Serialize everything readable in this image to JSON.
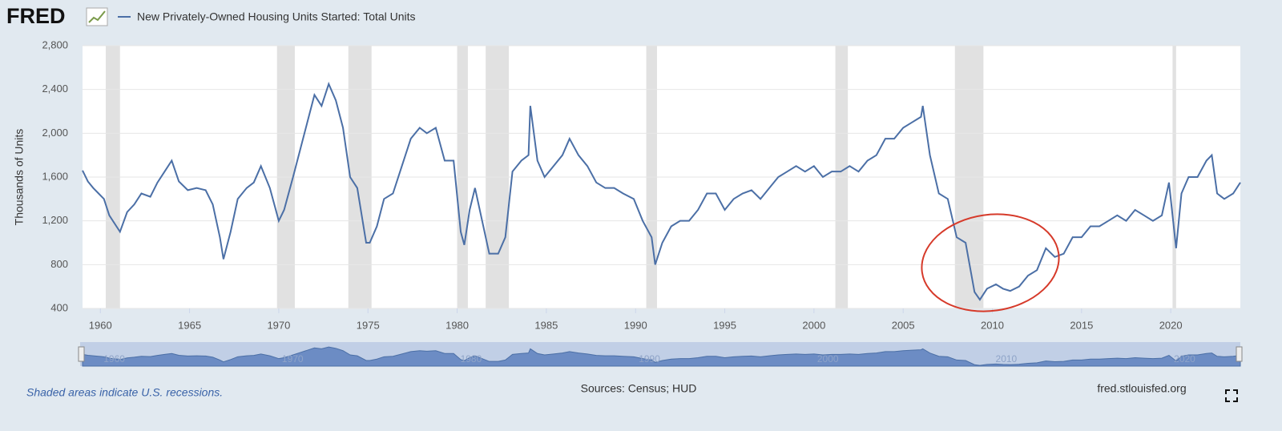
{
  "header": {
    "logo": "FRED"
  },
  "chart_data": {
    "type": "line",
    "ylabel": "Thousands of Units",
    "series": [
      {
        "name": "New Privately-Owned Housing Units Started: Total Units",
        "color": "#4b6fa6",
        "values": [
          1660,
          1560,
          1500,
          1450,
          1400,
          1250,
          1150,
          1100,
          1280,
          1350,
          1450,
          1420,
          1550,
          1650,
          1750,
          1560,
          1480,
          1500,
          1480,
          1350,
          1050,
          850,
          1100,
          1400,
          1500,
          1550,
          1700,
          1500,
          1200,
          1300,
          1600,
          1850,
          2100,
          2350,
          2250,
          2450,
          2300,
          2050,
          1600,
          1500,
          1000,
          1000,
          1150,
          1400,
          1450,
          1700,
          1950,
          2050,
          2000,
          2050,
          1750,
          1750,
          1100,
          980,
          1300,
          1500,
          1200,
          900,
          900,
          1050,
          1650,
          1750,
          1800,
          2250,
          1750,
          1600,
          1700,
          1800,
          1950,
          1800,
          1700,
          1550,
          1500,
          1500,
          1450,
          1400,
          1200,
          1050,
          800,
          1000,
          1150,
          1200,
          1200,
          1300,
          1450,
          1450,
          1300,
          1400,
          1450,
          1480,
          1400,
          1500,
          1600,
          1650,
          1700,
          1650,
          1700,
          1600,
          1650,
          1650,
          1700,
          1650,
          1750,
          1800,
          1950,
          1950,
          2050,
          2100,
          2150,
          2250,
          1800,
          1450,
          1400,
          1050,
          1000,
          550,
          480,
          580,
          620,
          580,
          560,
          600,
          700,
          750,
          950,
          870,
          900,
          1050,
          1050,
          1150,
          1150,
          1200,
          1250,
          1200,
          1300,
          1250,
          1200,
          1250,
          1550,
          950,
          1450,
          1600,
          1600,
          1750,
          1800,
          1450,
          1400,
          1450,
          1550
        ]
      }
    ],
    "x": [
      1959.0,
      1959.3,
      1959.6,
      1959.9,
      1960.2,
      1960.5,
      1960.9,
      1961.1,
      1961.5,
      1961.9,
      1962.3,
      1962.8,
      1963.2,
      1963.6,
      1964.0,
      1964.4,
      1964.9,
      1965.4,
      1965.9,
      1966.3,
      1966.7,
      1966.9,
      1967.3,
      1967.7,
      1968.2,
      1968.6,
      1969.0,
      1969.5,
      1970.0,
      1970.3,
      1970.8,
      1971.2,
      1971.6,
      1972.0,
      1972.4,
      1972.8,
      1973.2,
      1973.6,
      1974.0,
      1974.4,
      1974.9,
      1975.1,
      1975.5,
      1975.9,
      1976.4,
      1976.9,
      1977.4,
      1977.9,
      1978.3,
      1978.8,
      1979.3,
      1979.8,
      1980.2,
      1980.4,
      1980.7,
      1981.0,
      1981.4,
      1981.8,
      1982.3,
      1982.7,
      1983.1,
      1983.6,
      1984.0,
      1984.1,
      1984.5,
      1984.9,
      1985.4,
      1985.9,
      1986.3,
      1986.8,
      1987.3,
      1987.8,
      1988.3,
      1988.8,
      1989.3,
      1989.9,
      1990.4,
      1990.9,
      1991.1,
      1991.5,
      1992.0,
      1992.5,
      1993.0,
      1993.5,
      1994.0,
      1994.5,
      1995.0,
      1995.5,
      1996.0,
      1996.5,
      1997.0,
      1997.5,
      1998.0,
      1998.5,
      1999.0,
      1999.5,
      2000.0,
      2000.5,
      2001.0,
      2001.5,
      2002.0,
      2002.5,
      2003.0,
      2003.5,
      2004.0,
      2004.5,
      2005.0,
      2005.5,
      2006.0,
      2006.1,
      2006.5,
      2007.0,
      2007.5,
      2008.0,
      2008.5,
      2009.0,
      2009.3,
      2009.7,
      2010.2,
      2010.6,
      2011.0,
      2011.5,
      2012.0,
      2012.5,
      2013.0,
      2013.5,
      2014.0,
      2014.5,
      2015.0,
      2015.5,
      2016.0,
      2016.5,
      2017.0,
      2017.5,
      2018.0,
      2018.5,
      2019.0,
      2019.5,
      2019.9,
      2020.3,
      2020.6,
      2021.0,
      2021.5,
      2022.0,
      2022.3,
      2022.6,
      2023.0,
      2023.5,
      2023.9
    ],
    "xlim": [
      1959,
      2023.9
    ],
    "xticks": [
      1960,
      1965,
      1970,
      1975,
      1980,
      1985,
      1990,
      1995,
      2000,
      2005,
      2010,
      2015,
      2020
    ],
    "ylim": [
      400,
      2800
    ],
    "yticks": [
      400,
      800,
      {
        "value": 1200,
        "label": "1,200"
      },
      {
        "value": 1600,
        "label": "1,600"
      },
      {
        "value": 2000,
        "label": "2,000"
      },
      {
        "value": 2400,
        "label": "2,400"
      },
      {
        "value": 2800,
        "label": "2,800"
      }
    ],
    "grid": true,
    "recessions": [
      [
        1960.3,
        1961.1
      ],
      [
        1969.9,
        1970.9
      ],
      [
        1973.9,
        1975.2
      ],
      [
        1980.0,
        1980.6
      ],
      [
        1981.6,
        1982.9
      ],
      [
        1990.6,
        1991.2
      ],
      [
        2001.2,
        2001.9
      ],
      [
        2007.9,
        2009.5
      ],
      [
        2020.1,
        2020.3
      ]
    ],
    "navigator_ticks": [
      1960,
      1970,
      1980,
      1990,
      2000,
      2010,
      2020
    ]
  },
  "footer": {
    "note": "Shaded areas indicate U.S. recessions.",
    "sources": "Sources: Census; HUD",
    "site": "fred.stlouisfed.org"
  }
}
